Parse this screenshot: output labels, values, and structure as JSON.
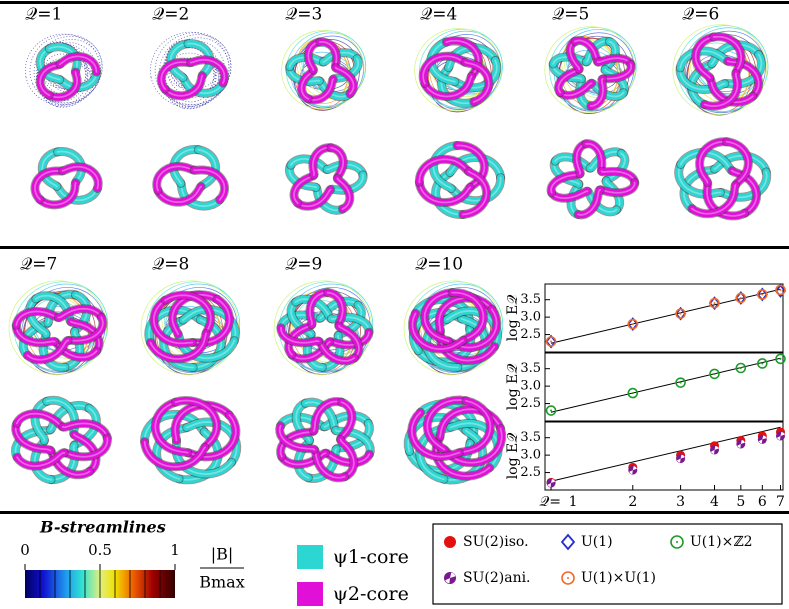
{
  "panel_labels": [
    "𝒬=1",
    "𝒬=2",
    "𝒬=3",
    "𝒬=4",
    "𝒬=5",
    "𝒬=6",
    "𝒬=7",
    "𝒬=8",
    "𝒬=9",
    "𝒬=10"
  ],
  "colorbar": {
    "title": "B-streamlines",
    "ticks": [
      0,
      0.5,
      1
    ],
    "label_num": "|B|",
    "label_den": "Bmax"
  },
  "core_legend": [
    {
      "label": "ψ1-core",
      "color": "#2cd6d2"
    },
    {
      "label": "ψ2-core",
      "color": "#e010d8"
    }
  ],
  "chart_data": [
    {
      "type": "scatter",
      "xscale": "log",
      "ylabel": "log E𝒬",
      "x": [
        1,
        2,
        3,
        4,
        5,
        6,
        7
      ],
      "xlim": [
        0.95,
        7.15
      ],
      "ylim": [
        2.0,
        3.95
      ],
      "yticks": [
        2.5,
        {
          "value": 3,
          "label": "3.0"
        },
        3.5
      ],
      "fit": {
        "x": [
          1,
          7
        ],
        "values": [
          2.25,
          3.8
        ]
      },
      "series": [
        {
          "name": "U(1)",
          "color": "#1f2fd0",
          "marker": "diamond",
          "values": [
            2.3,
            2.8,
            3.1,
            3.4,
            3.55,
            3.65,
            3.75
          ]
        },
        {
          "name": "U(1)×U(1)",
          "color": "#f26a2a",
          "marker": "circle-dot",
          "values": [
            2.3,
            2.8,
            3.1,
            3.4,
            3.55,
            3.65,
            3.78
          ]
        }
      ]
    },
    {
      "type": "scatter",
      "xscale": "log",
      "ylabel": "log E𝒬",
      "x": [
        1,
        2,
        3,
        4,
        5,
        6,
        7
      ],
      "xlim": [
        0.95,
        7.15
      ],
      "ylim": [
        2.0,
        3.95
      ],
      "yticks": [
        2.5,
        {
          "value": 3,
          "label": "3.0"
        },
        3.5
      ],
      "fit": {
        "x": [
          1,
          7
        ],
        "values": [
          2.25,
          3.8
        ]
      },
      "series": [
        {
          "name": "U(1)×ℤ2",
          "color": "#1e9a2a",
          "marker": "circle-dot",
          "values": [
            2.3,
            2.8,
            3.1,
            3.35,
            3.52,
            3.65,
            3.78
          ]
        }
      ]
    },
    {
      "type": "scatter",
      "xscale": "log",
      "ylabel": "log E𝒬",
      "xlabel": "𝒬=",
      "x": [
        1,
        2,
        3,
        4,
        5,
        6,
        7
      ],
      "xlim": [
        0.95,
        7.15
      ],
      "ylim": [
        2.0,
        3.95
      ],
      "xticks": [
        1,
        2,
        3,
        4,
        5,
        6,
        7
      ],
      "yticks": [
        2.5,
        {
          "value": 3,
          "label": "3.0"
        },
        3.5
      ],
      "fit": {
        "x": [
          1,
          7
        ],
        "values": [
          2.25,
          3.8
        ]
      },
      "series": [
        {
          "name": "SU(2)iso.",
          "color": "#e41010",
          "marker": "filled",
          "values": [
            2.22,
            2.65,
            3.0,
            3.27,
            3.42,
            3.55,
            3.66
          ]
        },
        {
          "name": "SU(2)ani.",
          "color": "#7a1890",
          "marker": "pie",
          "values": [
            2.2,
            2.57,
            2.9,
            3.15,
            3.32,
            3.45,
            3.55
          ]
        }
      ]
    }
  ]
}
